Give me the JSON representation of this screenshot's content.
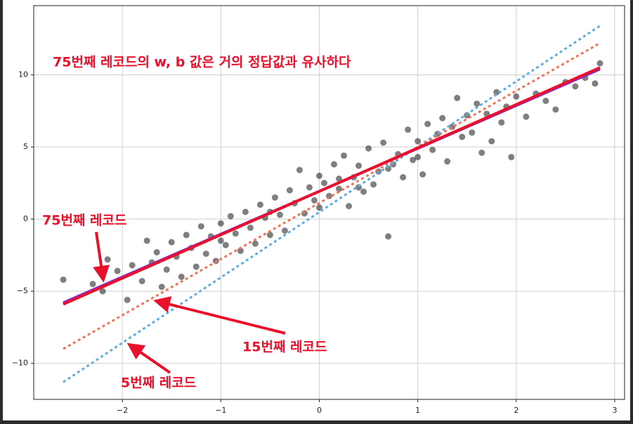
{
  "chart_data": {
    "type": "scatter",
    "xlim": [
      -2.9,
      3.1
    ],
    "ylim": [
      -12.5,
      14.8
    ],
    "xticks": [
      {
        "value": -2,
        "label": "−2"
      },
      {
        "value": -1,
        "label": "−1"
      },
      0,
      1,
      2,
      3
    ],
    "yticks": [
      {
        "value": -10,
        "label": "−10"
      },
      {
        "value": -5,
        "label": "−5"
      },
      0,
      5,
      10
    ],
    "grid": true,
    "color": "#000000",
    "x": [
      -2.6,
      -2.3,
      -2.2,
      -2.15,
      -2.05,
      -1.95,
      -1.9,
      -1.8,
      -1.75,
      -1.7,
      -1.65,
      -1.6,
      -1.55,
      -1.5,
      -1.45,
      -1.4,
      -1.35,
      -1.3,
      -1.25,
      -1.2,
      -1.15,
      -1.1,
      -1.05,
      -1.0,
      -0.95,
      -0.9,
      -0.85,
      -0.8,
      -0.75,
      -0.7,
      -0.65,
      -0.6,
      -0.55,
      -0.5,
      -0.45,
      -0.4,
      -0.35,
      -0.3,
      -0.25,
      -0.2,
      -0.15,
      -0.1,
      -0.05,
      0.0,
      0.0,
      0.05,
      0.1,
      0.15,
      0.2,
      0.25,
      0.3,
      0.35,
      0.4,
      0.45,
      0.5,
      0.55,
      0.6,
      0.65,
      0.7,
      0.75,
      0.8,
      0.85,
      0.9,
      0.95,
      1.0,
      1.05,
      1.1,
      1.15,
      1.2,
      1.25,
      1.3,
      1.35,
      1.4,
      1.45,
      1.5,
      1.55,
      1.6,
      1.65,
      1.7,
      1.75,
      1.8,
      1.85,
      1.9,
      1.95,
      2.0,
      2.1,
      2.2,
      2.3,
      2.4,
      2.5,
      2.6,
      2.7,
      2.8,
      2.85,
      -1.0,
      -0.5,
      0.2,
      0.4,
      0.7,
      1.0
    ],
    "y": [
      -4.2,
      -4.5,
      -5.0,
      -2.8,
      -3.6,
      -5.6,
      -3.2,
      -4.3,
      -1.5,
      -3.0,
      -2.3,
      -4.7,
      -3.5,
      -1.6,
      -2.6,
      -4.0,
      -1.1,
      -2.0,
      -3.3,
      -0.5,
      -2.4,
      -1.2,
      -2.9,
      -0.3,
      -1.8,
      0.2,
      -1.0,
      -2.2,
      0.5,
      -0.6,
      -1.7,
      1.0,
      0.1,
      -1.1,
      1.5,
      0.3,
      -0.8,
      2.0,
      1.1,
      3.4,
      0.4,
      2.2,
      1.3,
      3.0,
      0.8,
      2.5,
      1.6,
      3.8,
      2.1,
      4.4,
      0.9,
      2.9,
      3.7,
      1.9,
      4.9,
      2.4,
      3.3,
      5.3,
      -1.2,
      3.8,
      4.5,
      2.9,
      6.2,
      4.1,
      5.4,
      3.1,
      6.6,
      4.8,
      5.9,
      7.0,
      4.0,
      6.4,
      8.4,
      5.7,
      7.2,
      6.0,
      8.0,
      4.6,
      7.3,
      5.4,
      8.8,
      6.7,
      7.8,
      4.3,
      8.5,
      7.1,
      8.7,
      8.2,
      7.6,
      9.5,
      9.2,
      9.8,
      9.4,
      10.8,
      -1.5,
      0.5,
      2.8,
      2.2,
      3.5,
      4.3
    ],
    "lines": [
      {
        "x": [
          -2.6,
          2.85
        ],
        "y": [
          -11.3,
          13.4
        ],
        "color": "#5dade2",
        "dashed": true
      },
      {
        "x": [
          -2.6,
          2.85
        ],
        "y": [
          -9.0,
          12.2
        ],
        "color": "#f1735a",
        "dashed": true
      },
      {
        "x": [
          -2.6,
          2.85
        ],
        "y": [
          -5.8,
          10.4
        ],
        "color": "#8b2fc9",
        "dashed": false
      },
      {
        "x": [
          -2.6,
          2.85
        ],
        "y": [
          -5.9,
          10.5
        ],
        "color": "#e8102a",
        "dashed": false
      }
    ],
    "annotations": [
      "75번째 레코드의 w, b 값은 거의 정답값과 유사하다",
      "75번째 레코드",
      "15번째 레코드",
      "5번째 레코드"
    ]
  }
}
